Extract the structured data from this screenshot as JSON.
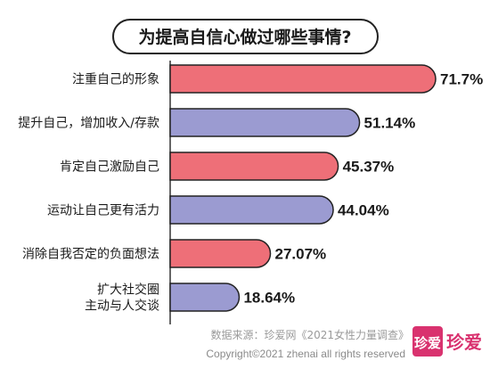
{
  "chart_data": {
    "type": "bar",
    "orientation": "horizontal",
    "title": "为提高自信心做过哪些事情?",
    "categories": [
      "注重自己的形象",
      "提升自己，增加收入/存款",
      "肯定自己激励自己",
      "运动让自己更有活力",
      "消除自我否定的负面想法",
      "扩大社交圈\n主动与人交谈"
    ],
    "values": [
      71.7,
      51.14,
      45.37,
      44.04,
      27.07,
      18.64
    ],
    "value_labels": [
      "71.7%",
      "51.14%",
      "45.37%",
      "44.04%",
      "27.07%",
      "18.64%"
    ],
    "bar_colors": [
      "#ee6f78",
      "#9b9bd1",
      "#ee6f78",
      "#9b9bd1",
      "#ee6f78",
      "#9b9bd1"
    ],
    "grid": false,
    "legend": "none"
  },
  "footer": {
    "source": "数据来源：珍爱网《2021女性力量调查》",
    "copyright": "Copyright©2021  zhenai  all rights reserved"
  },
  "brand": {
    "badge": "珍爱",
    "name": "珍爱",
    "color": "#d9326f"
  }
}
